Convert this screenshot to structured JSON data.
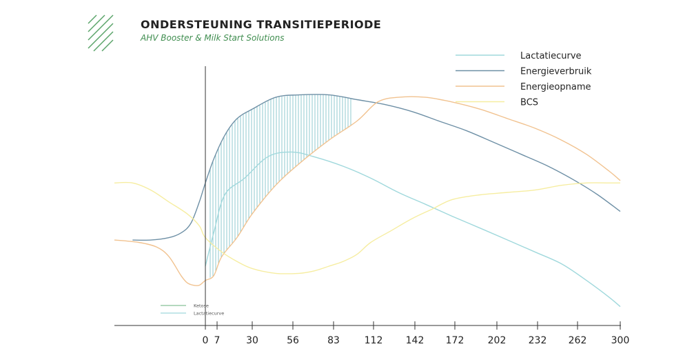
{
  "header": {
    "title": "ONDERSTEUNING TRANSITIEPERIODE",
    "subtitle": "AHV Booster & Milk Start Solutions",
    "logo_icon": "diagonal-stripes-logo-icon",
    "logo_color": "#5aa469"
  },
  "chart_data": {
    "type": "line",
    "title": "ONDERSTEUNING TRANSITIEPERIODE",
    "subtitle": "AHV Booster & Milk Start Solutions",
    "xlabel": "",
    "ylabel": "",
    "xlim": [
      -75,
      300
    ],
    "ylim": [
      0,
      100
    ],
    "grid": false,
    "legend_position": "top-right",
    "x_ticks": [
      0,
      7,
      30,
      56,
      83,
      112,
      142,
      172,
      202,
      232,
      262,
      300
    ],
    "series": [
      {
        "name": "Lactatiecurve",
        "color": "#9fd8dc",
        "x": [
          0,
          5,
          12,
          25,
          40,
          55,
          70,
          90,
          110,
          130,
          150,
          170,
          190,
          210,
          230,
          250,
          270,
          290,
          300
        ],
        "y": [
          20,
          34,
          50,
          57,
          66,
          68,
          66,
          62,
          57,
          51,
          46,
          41,
          36,
          31,
          26,
          21,
          14,
          7,
          3
        ]
      },
      {
        "name": "Energieverbruik",
        "color": "#6d8fa5",
        "x": [
          -60,
          -45,
          -30,
          -20,
          -12,
          -5,
          0,
          5,
          12,
          20,
          30,
          45,
          60,
          80,
          100,
          120,
          140,
          160,
          180,
          200,
          220,
          240,
          260,
          280,
          300
        ],
        "y": [
          31,
          31,
          32,
          34,
          38,
          47,
          55,
          65,
          75,
          82,
          86,
          91,
          92,
          92,
          90,
          88,
          85,
          81,
          77,
          72,
          67,
          62,
          56,
          50,
          43
        ]
      },
      {
        "name": "Energieopname",
        "color": "#f1c28f",
        "x": [
          -75,
          -55,
          -40,
          -30,
          -20,
          -15,
          -10,
          -5,
          0,
          5,
          10,
          20,
          30,
          45,
          60,
          80,
          100,
          115,
          130,
          150,
          170,
          190,
          210,
          230,
          250,
          270,
          290,
          300
        ],
        "y": [
          31,
          30,
          28,
          24,
          16,
          13,
          12,
          12,
          14,
          16,
          24,
          32,
          42,
          54,
          63,
          73,
          81,
          89,
          91,
          91,
          89,
          86,
          82,
          78,
          73,
          67,
          60,
          56
        ]
      },
      {
        "name": "BCS",
        "color": "#f6eda0",
        "x": [
          -75,
          -60,
          -45,
          -30,
          -15,
          -5,
          0,
          10,
          20,
          30,
          45,
          60,
          70,
          80,
          90,
          100,
          110,
          125,
          140,
          155,
          170,
          190,
          210,
          230,
          250,
          270,
          290,
          300
        ],
        "y": [
          55,
          55,
          52,
          47,
          42,
          37,
          32,
          26,
          22,
          19,
          17,
          17,
          18,
          20,
          22,
          25,
          30,
          35,
          40,
          44,
          48,
          50,
          51,
          52,
          54,
          55,
          55,
          55
        ]
      }
    ],
    "mini_legend": [
      {
        "label": "Ketose",
        "color": "#86c196"
      },
      {
        "label": "Lactatiecurve",
        "color": "#9fd8dc"
      }
    ],
    "shaded_region": {
      "between": [
        "Energieverbruik",
        "Energieopname"
      ],
      "x_range": [
        2,
        96
      ],
      "pattern": "vertical-hatch",
      "color": "#8fc8cf"
    }
  }
}
